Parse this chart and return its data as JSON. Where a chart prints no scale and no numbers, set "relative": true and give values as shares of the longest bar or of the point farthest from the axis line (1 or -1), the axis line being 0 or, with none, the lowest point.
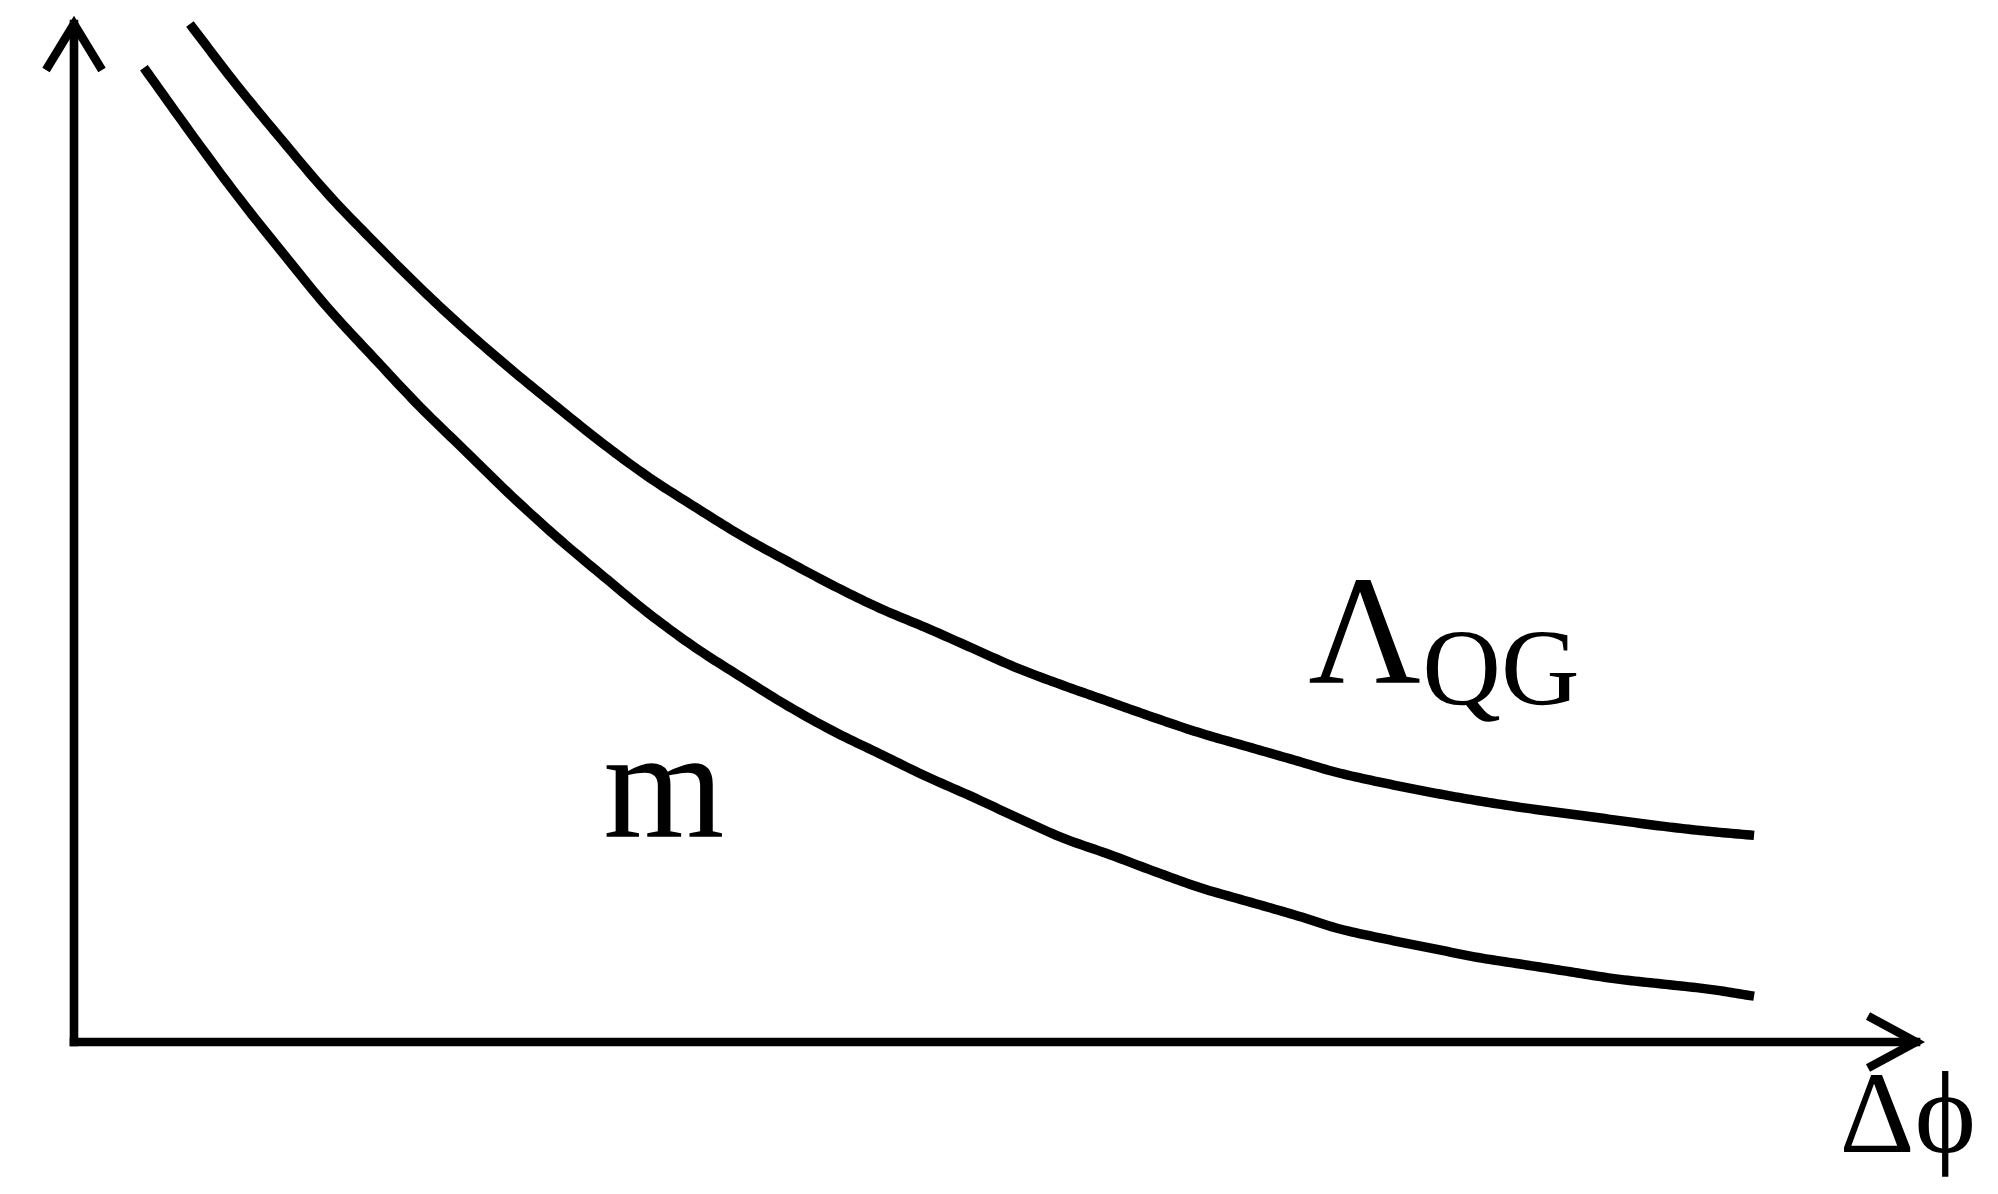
{
  "chart_data": {
    "type": "line",
    "relative": true,
    "xlabel": "Δϕ",
    "categories": [
      null,
      null,
      null,
      null,
      null,
      null,
      null,
      null,
      null,
      null,
      null,
      null,
      null,
      null,
      null,
      null,
      null,
      null,
      null,
      null,
      null,
      null,
      null,
      null,
      null,
      null,
      null,
      null,
      null,
      null,
      null,
      null,
      null,
      null,
      null,
      null
    ],
    "series": [
      {
        "name": "Λ$_{QG}$",
        "color": "#000000",
        "values": [
          null,
          1.0,
          0.941,
          0.886,
          0.833,
          0.786,
          0.741,
          0.699,
          0.66,
          0.623,
          0.587,
          0.554,
          0.525,
          0.497,
          0.472,
          0.448,
          0.426,
          0.407,
          0.387,
          0.367,
          0.35,
          0.334,
          0.318,
          0.303,
          0.29,
          0.277,
          0.264,
          0.254,
          0.245,
          0.237,
          0.23,
          0.224,
          0.218,
          0.212,
          0.207,
          0.203
        ]
      },
      {
        "name": "m",
        "color": "#000000",
        "values": [
          0.957,
          0.894,
          0.833,
          0.776,
          0.721,
          0.672,
          0.624,
          0.58,
          0.536,
          0.495,
          0.457,
          0.42,
          0.387,
          0.358,
          0.33,
          0.305,
          0.283,
          0.261,
          0.241,
          0.22,
          0.2,
          0.184,
          0.167,
          0.151,
          0.138,
          0.125,
          0.111,
          0.101,
          0.092,
          0.083,
          0.076,
          0.069,
          0.062,
          0.057,
          0.052,
          0.045
        ]
      }
    ]
  }
}
